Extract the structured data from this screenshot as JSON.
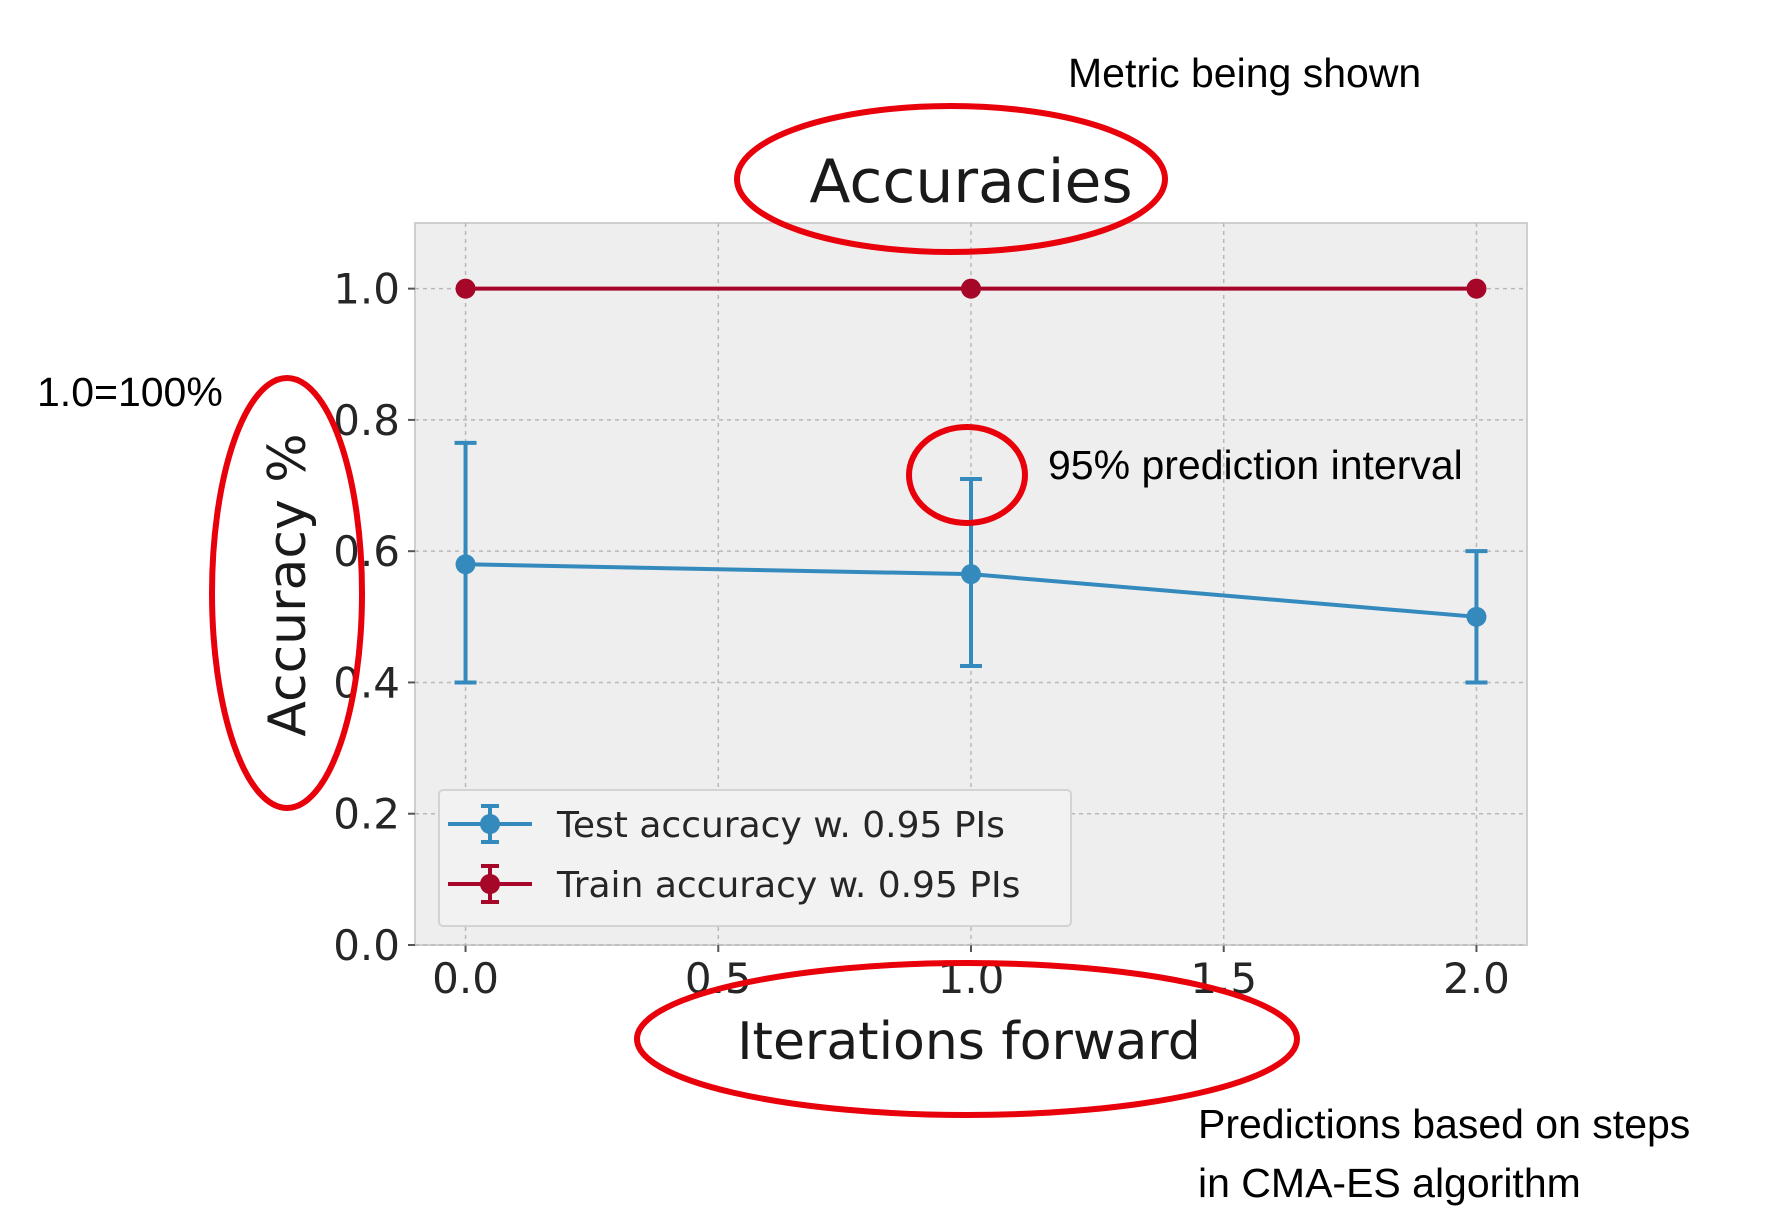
{
  "chart_data": {
    "type": "line",
    "title": "Accuracies",
    "xlabel": "Iterations forward",
    "ylabel": "Accuracy %",
    "xlim": [
      -0.1,
      2.1
    ],
    "ylim": [
      0.0,
      1.1
    ],
    "x_ticks": [
      "0.0",
      "0.5",
      "1.0",
      "1.5",
      "2.0"
    ],
    "y_ticks": [
      "0.0",
      "0.2",
      "0.4",
      "0.6",
      "0.8",
      "1.0"
    ],
    "grid": true,
    "legend_position": "lower-left",
    "series": [
      {
        "name": "Test accuracy w. 0.95 PIs",
        "color": "#348abd",
        "x": [
          0,
          1,
          2
        ],
        "y": [
          0.58,
          0.565,
          0.5
        ],
        "lower": [
          0.4,
          0.425,
          0.4
        ],
        "upper": [
          0.765,
          0.71,
          0.6
        ]
      },
      {
        "name": "Train accuracy w. 0.95 PIs",
        "color": "#a60628",
        "x": [
          0,
          1,
          2
        ],
        "y": [
          1.0,
          1.0,
          1.0
        ],
        "lower": [
          1.0,
          1.0,
          1.0
        ],
        "upper": [
          1.0,
          1.0,
          1.0
        ]
      }
    ]
  },
  "annotations": {
    "metric": "Metric being shown",
    "scale": "1.0=100%",
    "interval": "95% prediction interval",
    "predictions_line1": "Predictions based on steps",
    "predictions_line2": "in CMA-ES algorithm",
    "highlight_color": "#e8000b"
  }
}
